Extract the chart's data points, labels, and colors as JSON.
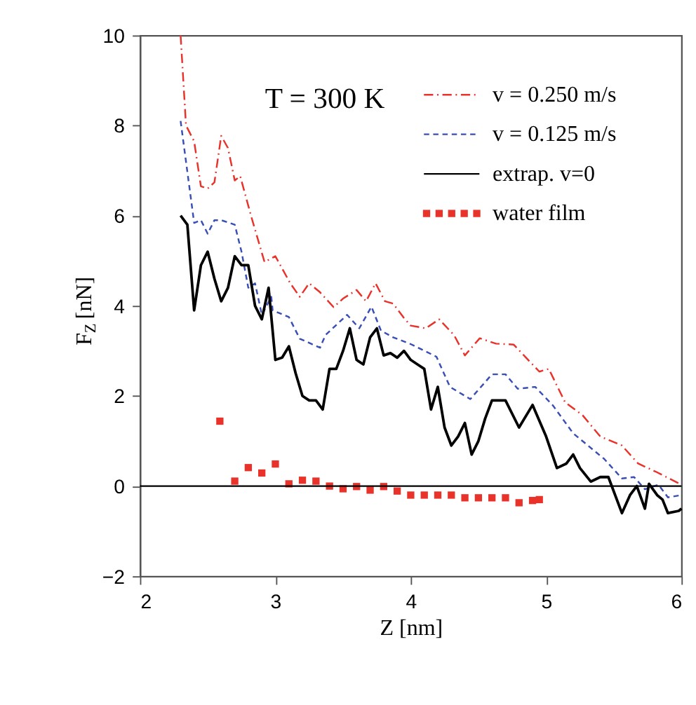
{
  "chart_data": {
    "type": "line",
    "xlabel": "Z [nm]",
    "ylabel": "F$_{Z}$ [nN]",
    "xlim": [
      2,
      6
    ],
    "xticks": [
      2,
      3,
      4,
      5,
      6
    ],
    "ylim": [
      -2,
      10
    ],
    "yticks": [
      -2,
      0,
      2,
      4,
      6,
      8,
      10
    ],
    "grid": false,
    "legend": "top right",
    "annotations": [
      "T = 300 K"
    ],
    "ref_lines": [
      {
        "axis": "y",
        "value": 0,
        "color": "#000000",
        "line_style": "solid"
      }
    ],
    "series": [
      {
        "name": "v = 0.250 m/s",
        "color": "#e8322a",
        "line_style": "dashdot",
        "x": [
          2.3,
          2.34,
          2.4,
          2.45,
          2.5,
          2.55,
          2.6,
          2.65,
          2.7,
          2.74,
          2.82,
          2.92,
          3.0,
          3.11,
          3.18,
          3.25,
          3.33,
          3.43,
          3.5,
          3.6,
          3.67,
          3.74,
          3.81,
          3.87,
          3.95,
          4.0,
          4.11,
          4.21,
          4.32,
          4.4,
          4.51,
          4.63,
          4.76,
          4.95,
          5.02,
          5.14,
          5.27,
          5.4,
          5.56,
          5.68,
          5.81,
          6.0
        ],
        "values": [
          10.0,
          8.0,
          7.65,
          6.65,
          6.6,
          6.74,
          7.77,
          7.5,
          6.78,
          6.88,
          6.0,
          4.97,
          5.1,
          4.5,
          4.2,
          4.5,
          4.3,
          3.97,
          4.16,
          4.35,
          4.1,
          4.5,
          4.1,
          4.05,
          3.73,
          3.56,
          3.5,
          3.7,
          3.35,
          2.9,
          3.28,
          3.16,
          3.14,
          2.54,
          2.6,
          1.86,
          1.57,
          1.1,
          0.9,
          0.5,
          0.32,
          0.03
        ]
      },
      {
        "name": "v = 0.125 m/s",
        "color": "#3a4fb5",
        "line_style": "dashed",
        "x": [
          2.3,
          2.4,
          2.45,
          2.5,
          2.55,
          2.6,
          2.7,
          2.75,
          2.8,
          2.85,
          2.9,
          2.97,
          2.98,
          3.1,
          3.18,
          3.33,
          3.37,
          3.53,
          3.62,
          3.71,
          3.78,
          3.87,
          4.0,
          4.19,
          4.29,
          4.44,
          4.6,
          4.7,
          4.79,
          4.92,
          5.05,
          5.2,
          5.43,
          5.56,
          5.65,
          5.73,
          5.83,
          5.9,
          6.0
        ],
        "values": [
          8.1,
          5.84,
          5.9,
          5.6,
          5.9,
          5.9,
          5.8,
          5.2,
          4.4,
          4.5,
          3.8,
          4.2,
          3.9,
          3.75,
          3.27,
          3.07,
          3.35,
          3.8,
          3.5,
          3.98,
          3.45,
          3.3,
          3.15,
          2.87,
          2.2,
          1.93,
          2.48,
          2.48,
          2.16,
          2.2,
          1.79,
          1.17,
          0.6,
          0.17,
          0.2,
          -0.07,
          0.03,
          -0.25,
          -0.2
        ]
      },
      {
        "name": "extrap. v=0",
        "color": "#000000",
        "line_style": "solid",
        "x": [
          2.3,
          2.35,
          2.4,
          2.45,
          2.5,
          2.55,
          2.6,
          2.65,
          2.7,
          2.75,
          2.8,
          2.85,
          2.9,
          2.95,
          3.0,
          3.05,
          3.1,
          3.15,
          3.2,
          3.25,
          3.3,
          3.35,
          3.4,
          3.45,
          3.5,
          3.55,
          3.6,
          3.65,
          3.7,
          3.75,
          3.8,
          3.85,
          3.9,
          3.95,
          4.0,
          4.05,
          4.1,
          4.15,
          4.2,
          4.25,
          4.3,
          4.35,
          4.4,
          4.45,
          4.5,
          4.55,
          4.6,
          4.7,
          4.8,
          4.9,
          5.0,
          5.08,
          5.15,
          5.2,
          5.25,
          5.33,
          5.4,
          5.46,
          5.56,
          5.62,
          5.67,
          5.73,
          5.76,
          5.82,
          5.86,
          5.9,
          5.98,
          6.0
        ],
        "values": [
          6.0,
          5.8,
          3.9,
          4.9,
          5.2,
          4.6,
          4.1,
          4.4,
          5.1,
          4.9,
          4.9,
          4.0,
          3.7,
          4.4,
          2.8,
          2.85,
          3.1,
          2.5,
          2.0,
          1.9,
          1.9,
          1.7,
          2.6,
          2.6,
          3.0,
          3.5,
          2.8,
          2.7,
          3.3,
          3.5,
          2.9,
          2.95,
          2.85,
          3.0,
          2.8,
          2.7,
          2.6,
          1.7,
          2.2,
          1.3,
          0.9,
          1.1,
          1.4,
          0.7,
          1.0,
          1.5,
          1.9,
          1.9,
          1.3,
          1.8,
          1.1,
          0.4,
          0.5,
          0.7,
          0.4,
          0.1,
          0.2,
          0.2,
          -0.6,
          -0.2,
          0.0,
          -0.5,
          0.05,
          -0.2,
          -0.3,
          -0.6,
          -0.55,
          -0.5
        ]
      },
      {
        "name": "water film",
        "color": "#e8322a",
        "type": "scatter",
        "marker": "square",
        "x": [
          2.59,
          2.7,
          2.8,
          2.9,
          3.0,
          3.1,
          3.2,
          3.3,
          3.4,
          3.5,
          3.6,
          3.7,
          3.8,
          3.9,
          4.0,
          4.1,
          4.2,
          4.3,
          4.4,
          4.5,
          4.6,
          4.7,
          4.8,
          4.9,
          4.95
        ],
        "values": [
          1.44,
          0.11,
          0.41,
          0.29,
          0.49,
          0.05,
          0.13,
          0.11,
          0.0,
          -0.06,
          -0.01,
          -0.09,
          -0.01,
          -0.11,
          -0.2,
          -0.2,
          -0.2,
          -0.2,
          -0.26,
          -0.26,
          -0.26,
          -0.26,
          -0.37,
          -0.32,
          -0.3
        ]
      }
    ]
  }
}
